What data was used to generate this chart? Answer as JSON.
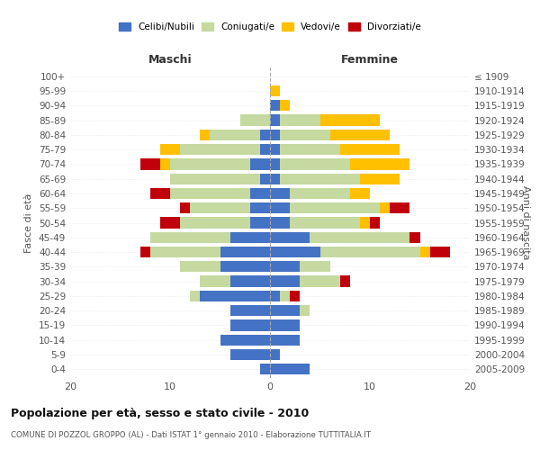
{
  "age_groups": [
    "0-4",
    "5-9",
    "10-14",
    "15-19",
    "20-24",
    "25-29",
    "30-34",
    "35-39",
    "40-44",
    "45-49",
    "50-54",
    "55-59",
    "60-64",
    "65-69",
    "70-74",
    "75-79",
    "80-84",
    "85-89",
    "90-94",
    "95-99",
    "100+"
  ],
  "birth_years": [
    "2005-2009",
    "2000-2004",
    "1995-1999",
    "1990-1994",
    "1985-1989",
    "1980-1984",
    "1975-1979",
    "1970-1974",
    "1965-1969",
    "1960-1964",
    "1955-1959",
    "1950-1954",
    "1945-1949",
    "1940-1944",
    "1935-1939",
    "1930-1934",
    "1925-1929",
    "1920-1924",
    "1915-1919",
    "1910-1914",
    "≤ 1909"
  ],
  "maschi": {
    "celibi": [
      1,
      4,
      5,
      4,
      4,
      7,
      4,
      5,
      5,
      4,
      2,
      2,
      2,
      1,
      2,
      1,
      1,
      0,
      0,
      0,
      0
    ],
    "coniugati": [
      0,
      0,
      0,
      0,
      0,
      1,
      3,
      4,
      7,
      8,
      7,
      6,
      8,
      9,
      8,
      8,
      5,
      3,
      0,
      0,
      0
    ],
    "vedovi": [
      0,
      0,
      0,
      0,
      0,
      0,
      0,
      0,
      0,
      0,
      0,
      0,
      0,
      0,
      1,
      2,
      1,
      0,
      0,
      0,
      0
    ],
    "divorziati": [
      0,
      0,
      0,
      0,
      0,
      0,
      0,
      0,
      1,
      0,
      2,
      1,
      2,
      0,
      2,
      0,
      0,
      0,
      0,
      0,
      0
    ]
  },
  "femmine": {
    "nubili": [
      4,
      1,
      3,
      3,
      3,
      1,
      3,
      3,
      5,
      4,
      2,
      2,
      2,
      1,
      1,
      1,
      1,
      1,
      1,
      0,
      0
    ],
    "coniugate": [
      0,
      0,
      0,
      0,
      1,
      1,
      4,
      3,
      10,
      10,
      7,
      9,
      6,
      8,
      7,
      6,
      5,
      4,
      0,
      0,
      0
    ],
    "vedove": [
      0,
      0,
      0,
      0,
      0,
      0,
      0,
      0,
      1,
      0,
      1,
      1,
      2,
      4,
      6,
      6,
      6,
      6,
      1,
      1,
      0
    ],
    "divorziate": [
      0,
      0,
      0,
      0,
      0,
      1,
      1,
      0,
      2,
      1,
      1,
      2,
      0,
      0,
      0,
      0,
      0,
      0,
      0,
      0,
      0
    ]
  },
  "colors": {
    "celibi": "#4472c4",
    "coniugati": "#c5d9a0",
    "vedovi": "#ffc000",
    "divorziati": "#c0000b"
  },
  "title": "Popolazione per età, sesso e stato civile - 2010",
  "subtitle": "COMUNE DI POZZOL GROPPO (AL) - Dati ISTAT 1° gennaio 2010 - Elaborazione TUTTITALIA.IT",
  "xlabel_left": "Maschi",
  "xlabel_right": "Femmine",
  "ylabel_left": "Fasce di età",
  "ylabel_right": "Anni di nascita",
  "xlim": 20,
  "legend_labels": [
    "Celibi/Nubili",
    "Coniugati/e",
    "Vedovi/e",
    "Divorziati/e"
  ]
}
